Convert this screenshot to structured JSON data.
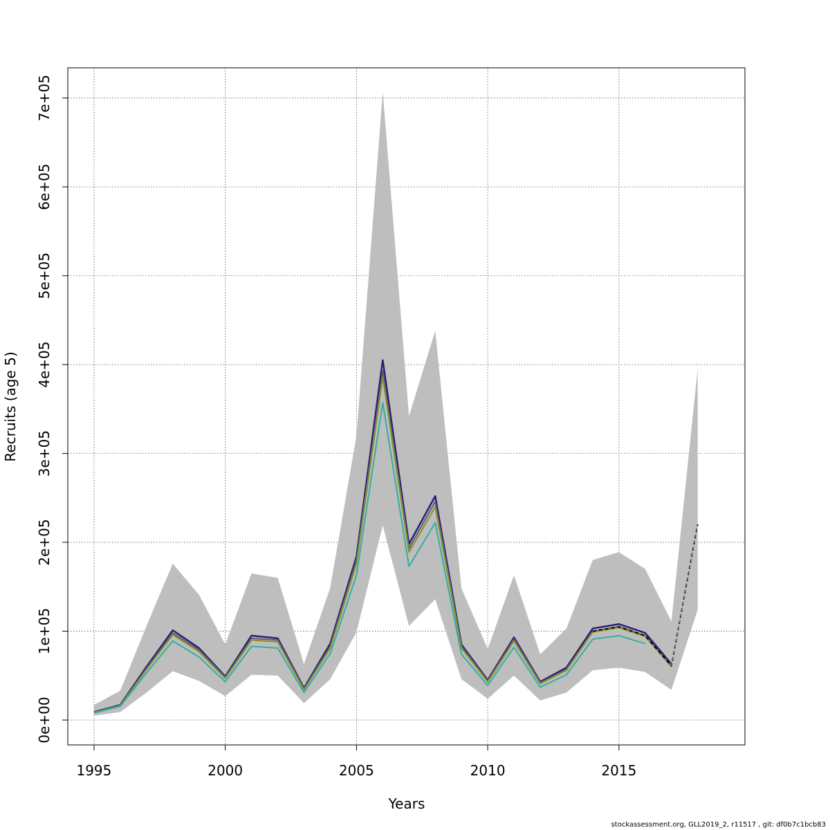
{
  "chart_data": {
    "type": "line",
    "xlabel": "Years",
    "ylabel": "Recruits (age 5)",
    "xlim": [
      1994,
      2019.8
    ],
    "ylim": [
      -28000,
      734000
    ],
    "grid": true,
    "x_ticks": [
      1995,
      2000,
      2005,
      2010,
      2015
    ],
    "x_tick_labels": [
      "1995",
      "2000",
      "2005",
      "2010",
      "2015"
    ],
    "y_ticks": [
      0,
      100000,
      200000,
      300000,
      400000,
      500000,
      600000,
      700000
    ],
    "y_tick_labels": [
      "0e+00",
      "1e+05",
      "2e+05",
      "3e+05",
      "4e+05",
      "5e+05",
      "6e+05",
      "7e+05"
    ],
    "x": [
      1995,
      1996,
      1997,
      1998,
      1999,
      2000,
      2001,
      2002,
      2003,
      2004,
      2005,
      2006,
      2007,
      2008,
      2009,
      2010,
      2011,
      2012,
      2013,
      2014,
      2015,
      2016,
      2017,
      2018
    ],
    "confidence_band": {
      "color": "#bebebe",
      "lower": [
        5000,
        9000,
        31000,
        55000,
        44000,
        27000,
        51000,
        50000,
        19000,
        46000,
        99000,
        219000,
        106000,
        136000,
        46000,
        24000,
        50000,
        22000,
        31000,
        56000,
        59000,
        54000,
        34000,
        124000
      ],
      "upper": [
        17000,
        33000,
        106000,
        176000,
        141000,
        85000,
        165000,
        160000,
        63000,
        149000,
        320000,
        707000,
        342000,
        438000,
        148000,
        80000,
        163000,
        74000,
        103000,
        180000,
        189000,
        170000,
        111000,
        395000
      ]
    },
    "series": [
      {
        "color": "#2d1b7a",
        "width": 2.5,
        "values": [
          9000,
          17000,
          60000,
          101000,
          81000,
          49000,
          95000,
          92000,
          36000,
          86000,
          184000,
          405000,
          198000,
          252000,
          85000,
          45000,
          93000,
          43000,
          59000,
          103000,
          108000,
          98000,
          63000,
          null
        ]
      },
      {
        "color": "#56606e",
        "width": 2,
        "values": [
          8700,
          16500,
          58000,
          98000,
          79000,
          48000,
          92000,
          90000,
          35000,
          83000,
          180000,
          393000,
          193000,
          246000,
          83000,
          44000,
          91000,
          42000,
          57000,
          100000,
          105000,
          95000,
          61000,
          null
        ]
      },
      {
        "color": "#8a8f2a",
        "width": 2,
        "values": [
          8500,
          16000,
          57000,
          96000,
          77000,
          47000,
          90000,
          88000,
          34000,
          81000,
          176000,
          386000,
          189000,
          240000,
          81000,
          43000,
          89000,
          41000,
          56000,
          99000,
          104000,
          94000,
          60000,
          null
        ]
      },
      {
        "color": "#2fb0a0",
        "width": 2,
        "values": [
          8000,
          15500,
          53000,
          89000,
          71000,
          43000,
          83000,
          81000,
          31000,
          75000,
          163000,
          357000,
          173000,
          222000,
          74000,
          39000,
          82000,
          37000,
          51000,
          91000,
          95000,
          86000,
          null,
          null
        ]
      },
      {
        "color": "#000000",
        "width": 2,
        "dash": "5,4",
        "values": [
          null,
          null,
          null,
          null,
          null,
          null,
          null,
          null,
          null,
          null,
          null,
          null,
          null,
          null,
          null,
          null,
          null,
          null,
          null,
          100000,
          105000,
          95000,
          61000,
          220000
        ]
      },
      {
        "color": "#9a9a9a",
        "width": 1.2,
        "dash": "5,4",
        "values": [
          null,
          null,
          null,
          null,
          null,
          null,
          null,
          null,
          null,
          null,
          null,
          null,
          null,
          null,
          null,
          null,
          null,
          null,
          null,
          null,
          null,
          null,
          61000,
          218000
        ]
      }
    ]
  },
  "footer_text": "stockassessment.org, GLL2019_2, r11517 , git: df0b7c1bcb83"
}
